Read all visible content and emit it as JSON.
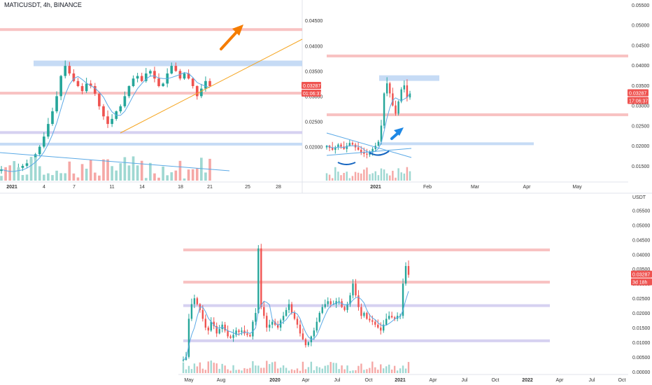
{
  "header": {
    "title": "MATICUSDT, 4h, BINANCE"
  },
  "colors": {
    "up": "#26a69a",
    "down": "#ef5350",
    "up_vol": "#9fd8d2",
    "down_vol": "#f5a8a6",
    "red_zone": "#f7b7b7",
    "blue_zone": "#bcd5f3",
    "purple_zone": "#cfc9ee",
    "ma_line": "#5aa9e6",
    "trendline": "#f5a623",
    "arrow_orange": "#f57c00",
    "arrow_blue": "#1e88e5",
    "price_tag": "#ef5350",
    "axis_text": "#333333",
    "divider": "#e0e3eb"
  },
  "price_tag": {
    "value": "0.03287"
  },
  "chart_data": [
    {
      "name": "panel-4h",
      "type": "candlestick",
      "timeframe": "4h",
      "ylim": [
        0.013,
        0.0485
      ],
      "x_tick_labels": [
        "2021",
        "4",
        "7",
        "11",
        "14",
        "18",
        "21",
        "25",
        "28"
      ],
      "y_tick_labels": [
        "0.04500",
        "0.04000",
        "0.03500",
        "0.03000",
        "0.02500",
        "0.02000"
      ],
      "y_tick_values": [
        0.045,
        0.04,
        0.035,
        0.03,
        0.025,
        0.02
      ],
      "countdown": "01:06:37",
      "zones": [
        {
          "kind": "red",
          "price": 0.0432
        },
        {
          "kind": "blue",
          "price": 0.0365
        },
        {
          "kind": "red",
          "price": 0.0306
        },
        {
          "kind": "purple",
          "price": 0.0228
        },
        {
          "kind": "blue",
          "price": 0.0205
        }
      ],
      "close_path": [
        0.0155,
        0.015,
        0.0148,
        0.0152,
        0.0158,
        0.0162,
        0.0167,
        0.0175,
        0.0185,
        0.02,
        0.022,
        0.0245,
        0.027,
        0.03,
        0.034,
        0.036,
        0.0345,
        0.033,
        0.032,
        0.031,
        0.0325,
        0.032,
        0.0305,
        0.028,
        0.026,
        0.0245,
        0.0255,
        0.027,
        0.028,
        0.03,
        0.032,
        0.0335,
        0.034,
        0.033,
        0.0345,
        0.035,
        0.0335,
        0.032,
        0.0325,
        0.0345,
        0.036,
        0.035,
        0.0335,
        0.0345,
        0.0335,
        0.032,
        0.03,
        0.0315,
        0.033,
        0.032
      ]
    },
    {
      "name": "panel-daily",
      "type": "candlestick",
      "timeframe": "1D",
      "ylim": [
        0.011,
        0.0555
      ],
      "x_tick_labels": [
        "2021",
        "Feb",
        "Mar",
        "Apr",
        "May"
      ],
      "y_tick_labels": [
        "0.05500",
        "0.05000",
        "0.04500",
        "0.04000",
        "0.03500",
        "0.03000",
        "0.02500",
        "0.02000",
        "0.01500"
      ],
      "y_tick_values": [
        0.055,
        0.05,
        0.045,
        0.04,
        0.035,
        0.03,
        0.025,
        0.02,
        0.015
      ],
      "countdown": "17:06:37",
      "zones": [
        {
          "kind": "red",
          "price": 0.0423
        },
        {
          "kind": "blue",
          "price": 0.0368
        },
        {
          "kind": "red",
          "price": 0.0277
        },
        {
          "kind": "blue",
          "price": 0.0205
        }
      ],
      "close_path": [
        0.02,
        0.0195,
        0.019,
        0.0196,
        0.0203,
        0.0198,
        0.0192,
        0.02,
        0.0207,
        0.0203,
        0.0196,
        0.019,
        0.0184,
        0.018,
        0.0178,
        0.0185,
        0.0192,
        0.02,
        0.021,
        0.025,
        0.033,
        0.0355,
        0.033,
        0.03,
        0.028,
        0.031,
        0.034,
        0.035,
        0.032,
        0.033
      ]
    },
    {
      "name": "panel-weekly",
      "type": "candlestick",
      "timeframe": "1W",
      "ylim": [
        -0.001,
        0.0575
      ],
      "x_tick_labels": [
        "May",
        "Aug",
        "2020",
        "Apr",
        "Jul",
        "Oct",
        "2021",
        "Apr",
        "Jul",
        "Oct",
        "2022",
        "Apr",
        "Jul",
        "Oct"
      ],
      "y_tick_labels": [
        "USDT",
        "0.05500",
        "0.05000",
        "0.04500",
        "0.04000",
        "0.03500",
        "0.03000",
        "0.02500",
        "0.02000",
        "0.01500",
        "0.01000",
        "0.00500",
        "0.00000"
      ],
      "y_tick_values": [
        null,
        0.055,
        0.05,
        0.045,
        0.04,
        0.035,
        0.03,
        0.025,
        0.02,
        0.015,
        0.01,
        0.005,
        0.0
      ],
      "countdown": "3d 18h",
      "zones": [
        {
          "kind": "red",
          "price": 0.0415
        },
        {
          "kind": "red",
          "price": 0.0305
        },
        {
          "kind": "purple",
          "price": 0.0225
        },
        {
          "kind": "purple",
          "price": 0.0105
        }
      ],
      "close_path": [
        0.004,
        0.005,
        0.018,
        0.023,
        0.025,
        0.023,
        0.021,
        0.018,
        0.015,
        0.014,
        0.017,
        0.0155,
        0.013,
        0.0145,
        0.016,
        0.014,
        0.012,
        0.0115,
        0.0125,
        0.014,
        0.0135,
        0.014,
        0.013,
        0.0125,
        0.012,
        0.017,
        0.02,
        0.042,
        0.022,
        0.019,
        0.015,
        0.016,
        0.017,
        0.016,
        0.015,
        0.0175,
        0.019,
        0.021,
        0.023,
        0.02,
        0.018,
        0.016,
        0.013,
        0.011,
        0.009,
        0.01,
        0.012,
        0.014,
        0.017,
        0.02,
        0.022,
        0.023,
        0.024,
        0.023,
        0.023,
        0.024,
        0.024,
        0.022,
        0.021,
        0.023,
        0.026,
        0.03,
        0.026,
        0.022,
        0.019,
        0.02,
        0.018,
        0.0175,
        0.017,
        0.016,
        0.015,
        0.014,
        0.016,
        0.018,
        0.019,
        0.0185,
        0.018,
        0.019,
        0.019,
        0.03,
        0.036,
        0.033
      ]
    }
  ]
}
